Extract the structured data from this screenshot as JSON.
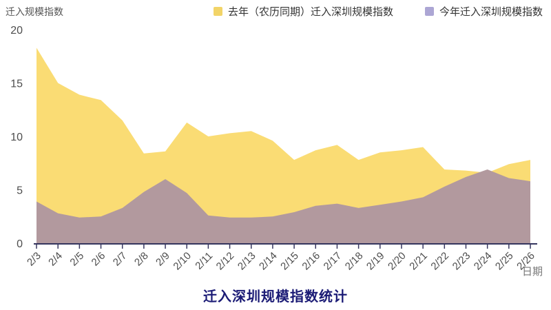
{
  "chart_data": {
    "type": "area",
    "title": "迁入深圳规模指数统计",
    "ylabel": "迁入规模指数",
    "xlabel": "日期",
    "x": [
      "2/3",
      "2/4",
      "2/5",
      "2/6",
      "2/7",
      "2/8",
      "2/9",
      "2/10",
      "2/11",
      "2/12",
      "2/13",
      "2/14",
      "2/15",
      "2/16",
      "2/17",
      "2/18",
      "2/19",
      "2/20",
      "2/21",
      "2/22",
      "2/23",
      "2/24",
      "2/25",
      "2/26"
    ],
    "series": [
      {
        "name": "去年（农历同期）迁入深圳规模指数",
        "fill": "#FADC74",
        "legend_color": "#F2D468",
        "values": [
          18.3,
          15.0,
          13.9,
          13.4,
          11.5,
          8.4,
          8.6,
          11.3,
          10.0,
          10.3,
          10.5,
          9.6,
          7.8,
          8.7,
          9.2,
          7.8,
          8.5,
          8.7,
          9.0,
          6.9,
          6.8,
          6.6,
          7.4,
          7.8
        ]
      },
      {
        "name": "今年迁入深圳规模指数",
        "fill": "#B2999E",
        "legend_color": "#ACA6D4",
        "values": [
          3.9,
          2.8,
          2.4,
          2.5,
          3.3,
          4.8,
          6.0,
          4.7,
          2.6,
          2.4,
          2.4,
          2.5,
          2.9,
          3.5,
          3.7,
          3.3,
          3.6,
          3.9,
          4.3,
          5.3,
          6.2,
          6.9,
          6.1,
          5.8
        ]
      }
    ],
    "ylim": [
      0,
      20
    ],
    "yticks": [
      0,
      5,
      10,
      15,
      20
    ],
    "grid": false,
    "legend_position": "top-right",
    "colors": {
      "axis": "#35355E",
      "tick_label": "#4D4D4D",
      "title": "#1A1A75",
      "xlabel_unit": "#777777"
    }
  }
}
